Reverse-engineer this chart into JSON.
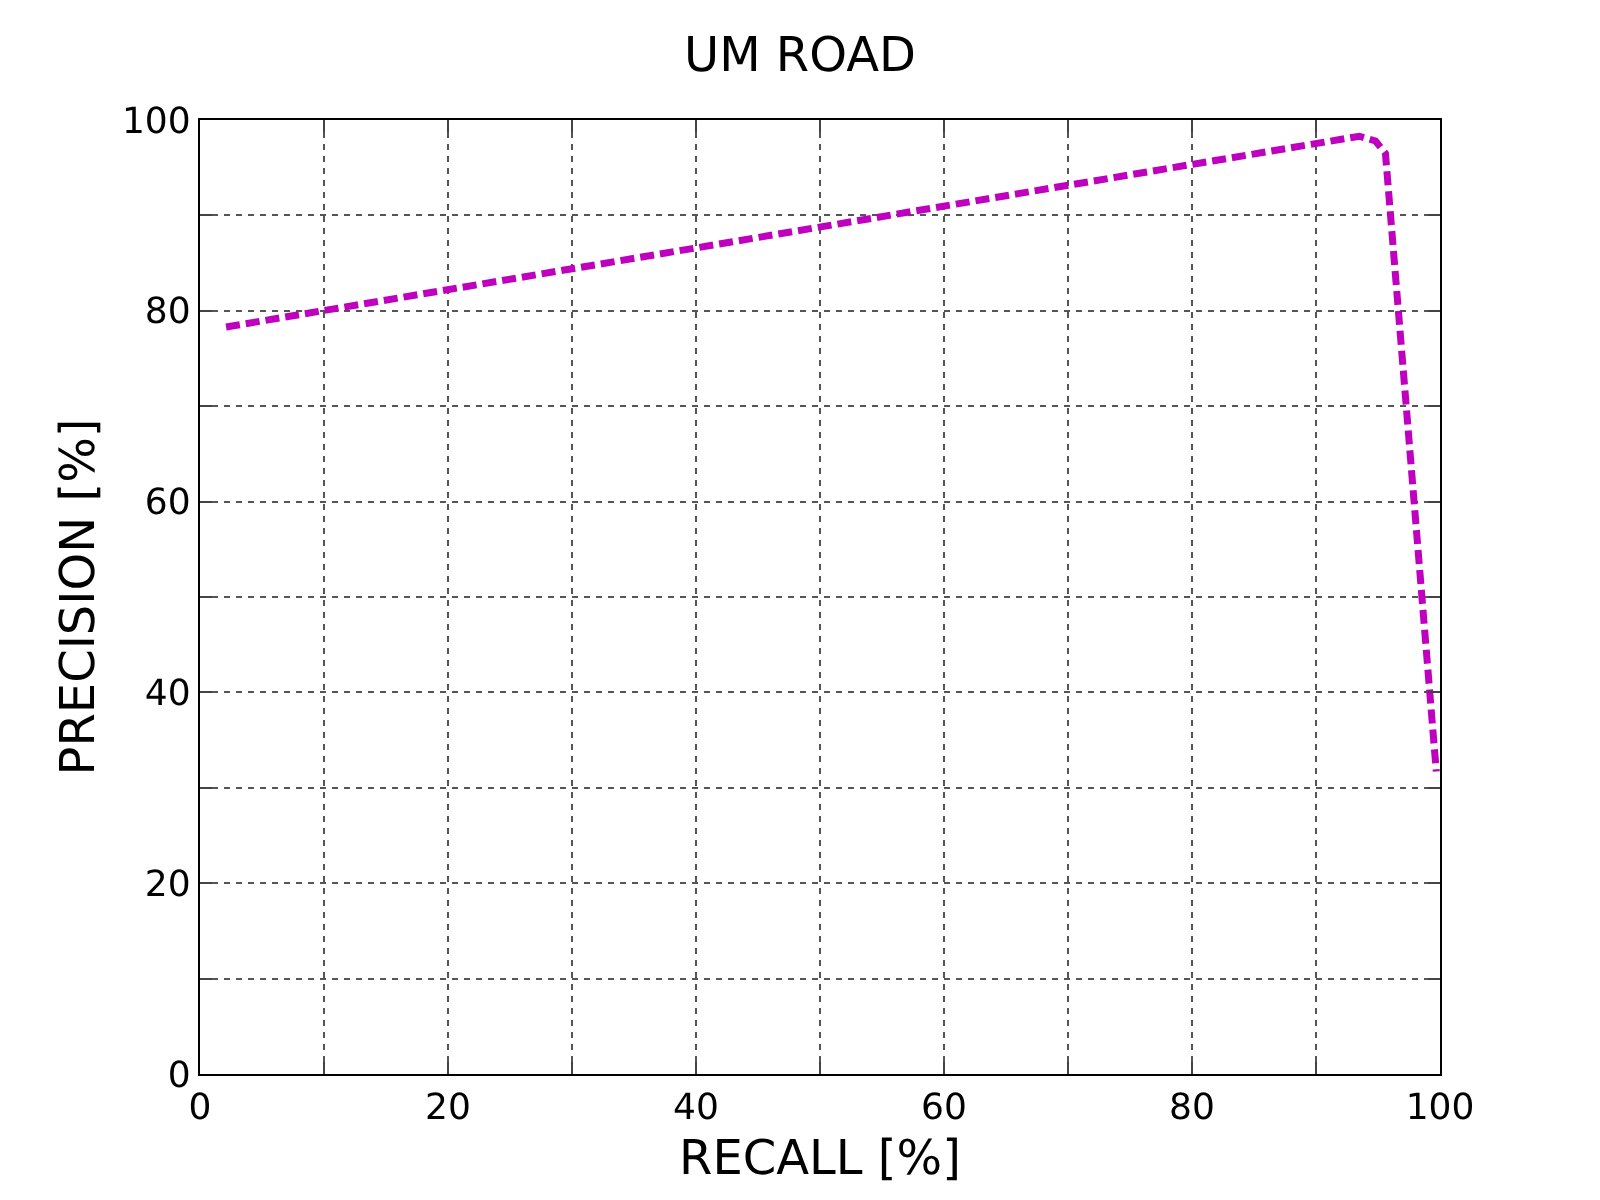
{
  "chart_data": {
    "type": "line",
    "title": "UM ROAD",
    "xlabel": "RECALL [%]",
    "ylabel": "PRECISION [%]",
    "series": [
      {
        "color": "#bf00bf",
        "x": [
          2.1,
          93.5,
          94.8,
          95.6,
          99.7
        ],
        "values": [
          78.3,
          98.3,
          97.8,
          96.5,
          31.7
        ]
      }
    ],
    "xlim": [
      0,
      100
    ],
    "ylim": [
      0,
      100
    ],
    "xticks": [
      0,
      {
        "value": 10,
        "label": null
      },
      20,
      {
        "value": 30,
        "label": null
      },
      40,
      {
        "value": 50,
        "label": null
      },
      60,
      {
        "value": 70,
        "label": null
      },
      80,
      {
        "value": 90,
        "label": null
      },
      100
    ],
    "yticks": [
      0,
      {
        "value": 10,
        "label": null
      },
      20,
      {
        "value": 30,
        "label": null
      },
      40,
      {
        "value": 50,
        "label": null
      },
      60,
      {
        "value": 70,
        "label": null
      },
      80,
      {
        "value": 90,
        "label": null
      },
      100
    ],
    "grid": true,
    "line_style": "dashed"
  }
}
